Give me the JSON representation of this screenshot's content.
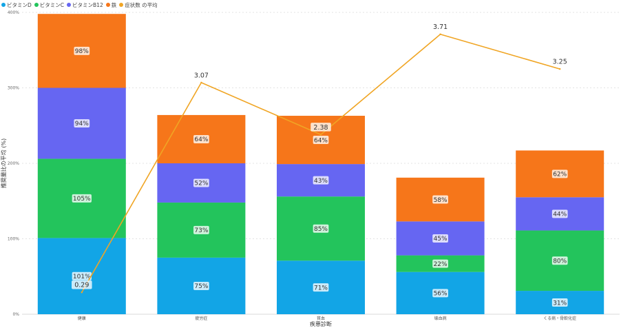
{
  "colors": {
    "vitamin_d": "#12A5E6",
    "vitamin_c": "#23C45C",
    "vitamin_b12": "#6666F2",
    "iron": "#F6761A",
    "symptom_avg": "#F0A524"
  },
  "chart_data": {
    "type": "bar",
    "stacked": true,
    "title": "",
    "xlabel": "疾患診断",
    "ylabel": "推奨量比の平均 (%)",
    "ylim": [
      0,
      400
    ],
    "yticks": [
      0,
      100,
      200,
      300,
      400
    ],
    "ytick_labels": [
      "0%",
      "100%",
      "200%",
      "300%",
      "400%"
    ],
    "grid": true,
    "legend_position": "top-left",
    "categories": [
      "健康",
      "疲労症",
      "貧血",
      "壊血病",
      "くる病・骨軟化症"
    ],
    "series": [
      {
        "name": "ビタミンD",
        "color_key": "vitamin_d",
        "values": [
          101,
          75,
          71,
          56,
          31
        ]
      },
      {
        "name": "ビタミンC",
        "color_key": "vitamin_c",
        "values": [
          105,
          73,
          85,
          22,
          80
        ]
      },
      {
        "name": "ビタミンB12",
        "color_key": "vitamin_b12",
        "values": [
          94,
          52,
          43,
          45,
          44
        ]
      },
      {
        "name": "鉄",
        "color_key": "iron",
        "values": [
          98,
          64,
          64,
          58,
          62
        ]
      }
    ],
    "line_series": {
      "name": "症状数 の平均",
      "color_key": "symptom_avg",
      "values": [
        0.29,
        3.07,
        2.38,
        3.71,
        3.25
      ],
      "labels": [
        "0.29",
        "3.07",
        "2.38",
        "3.71",
        "3.25"
      ],
      "ylim": [
        0,
        4
      ]
    }
  }
}
